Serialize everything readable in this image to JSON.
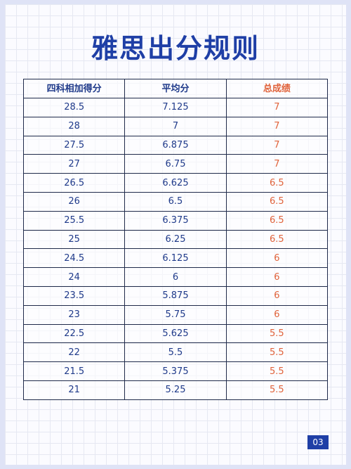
{
  "title": "雅思出分规则",
  "table": {
    "headers": [
      "四科相加得分",
      "平均分",
      "总成绩"
    ],
    "rows": [
      [
        "28.5",
        "7.125",
        "7"
      ],
      [
        "28",
        "7",
        "7"
      ],
      [
        "27.5",
        "6.875",
        "7"
      ],
      [
        "27",
        "6.75",
        "7"
      ],
      [
        "26.5",
        "6.625",
        "6.5"
      ],
      [
        "26",
        "6.5",
        "6.5"
      ],
      [
        "25.5",
        "6.375",
        "6.5"
      ],
      [
        "25",
        "6.25",
        "6.5"
      ],
      [
        "24.5",
        "6.125",
        "6"
      ],
      [
        "24",
        "6",
        "6"
      ],
      [
        "23.5",
        "5.875",
        "6"
      ],
      [
        "23",
        "5.75",
        "6"
      ],
      [
        "22.5",
        "5.625",
        "5.5"
      ],
      [
        "22",
        "5.5",
        "5.5"
      ],
      [
        "21.5",
        "5.375",
        "5.5"
      ],
      [
        "21",
        "5.25",
        "5.5"
      ]
    ]
  },
  "page_number": "03",
  "colors": {
    "title": "#1f3fa6",
    "table_text": "#1f3a8a",
    "overall_accent": "#e0623a",
    "badge": "#1f3fa6"
  }
}
